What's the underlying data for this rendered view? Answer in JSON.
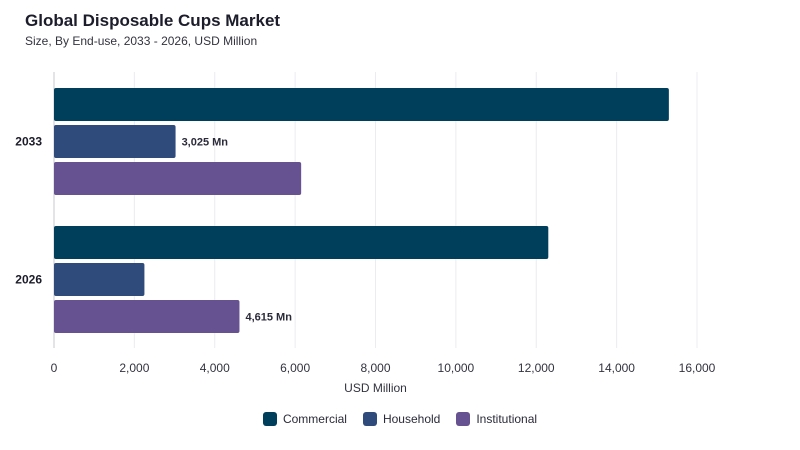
{
  "chart_data": {
    "type": "bar",
    "orientation": "horizontal",
    "title": "Global Disposable Cups Market",
    "subtitle": "Size, By End-use, 2033 - 2026, USD Million",
    "xlabel": "USD Million",
    "ylabel": "",
    "xlim": [
      0,
      16000
    ],
    "xticks": [
      0,
      2000,
      4000,
      6000,
      8000,
      10000,
      12000,
      14000,
      16000
    ],
    "xtick_labels": [
      "0",
      "2,000",
      "4,000",
      "6,000",
      "8,000",
      "10,000",
      "12,000",
      "14,000",
      "16,000"
    ],
    "categories": [
      "2033",
      "2026"
    ],
    "series": [
      {
        "name": "Commercial",
        "color": "#003f5c",
        "values": [
          15300,
          12300
        ]
      },
      {
        "name": "Household",
        "color": "#2f4b7c",
        "values": [
          3025,
          2250
        ]
      },
      {
        "name": "Institutional",
        "color": "#665191",
        "values": [
          6150,
          4615
        ]
      }
    ],
    "data_labels": [
      {
        "category": "2033",
        "series": "Household",
        "text": "3,025 Mn"
      },
      {
        "category": "2026",
        "series": "Institutional",
        "text": "4,615 Mn"
      }
    ],
    "grid": true,
    "legend": "bottom-center"
  }
}
